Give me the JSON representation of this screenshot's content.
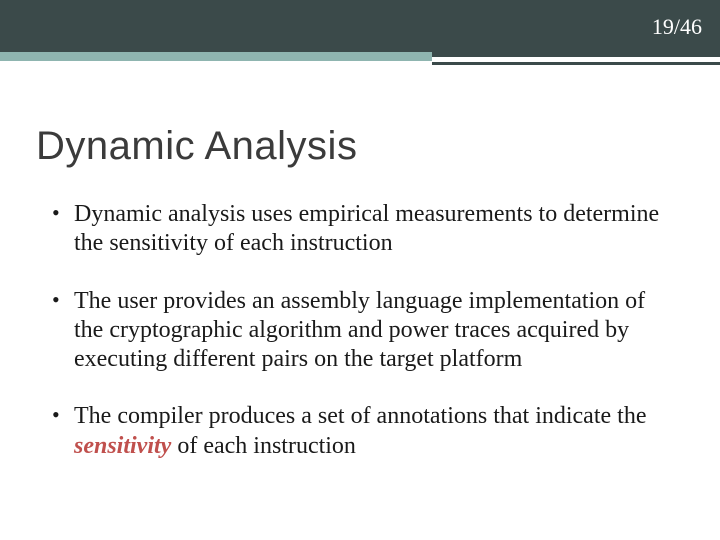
{
  "page": {
    "current": 19,
    "total": 46,
    "display": "19/46"
  },
  "title": "Dynamic Analysis",
  "bullets": [
    {
      "text_before": "Dynamic analysis uses empirical measurements to determine the sensitivity of each instruction",
      "emph": "",
      "text_after": ""
    },
    {
      "text_before": "The user provides an assembly language implementation of the cryptographic algorithm and power traces acquired by executing different pairs on the target platform",
      "emph": "",
      "text_after": ""
    },
    {
      "text_before": "The compiler produces a set of annotations that indicate the ",
      "emph": "sensitivity",
      "text_after": " of each instruction"
    }
  ],
  "colors": {
    "header_bg": "#3b4a4a",
    "accent_teal": "#8fb5b0",
    "title_color": "#3b3b3b",
    "body_text": "#1a1a1a",
    "emphasis": "#c0504d",
    "background": "#ffffff"
  },
  "typography": {
    "title_font": "Trebuchet MS",
    "title_size_pt": 30,
    "body_font": "Georgia",
    "body_size_pt": 18,
    "page_number_size_pt": 16
  }
}
